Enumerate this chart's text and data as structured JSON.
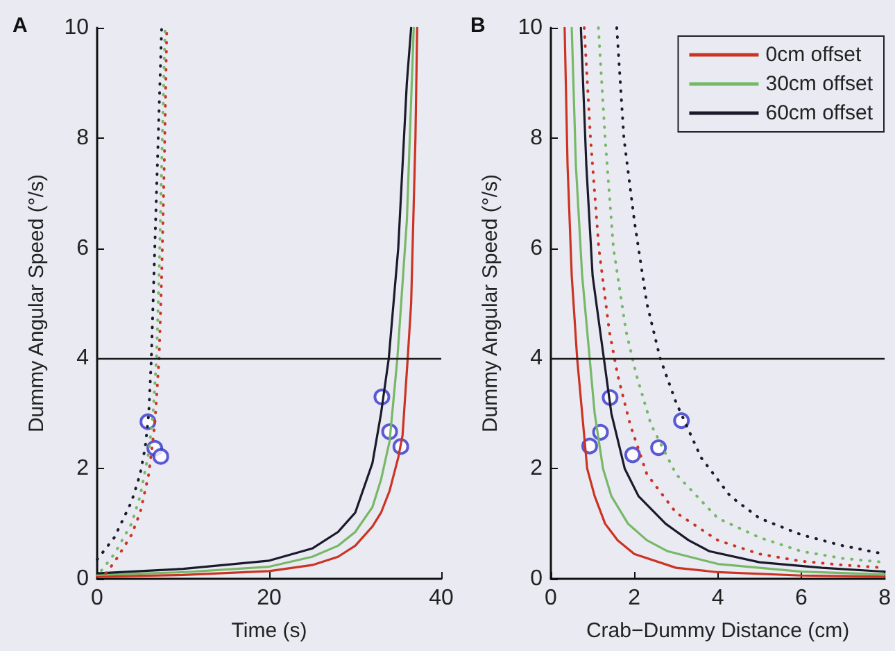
{
  "chart_data": [
    {
      "type": "line",
      "title": "A",
      "xlabel": "Time (s)",
      "ylabel": "Dummy Angular Speed (°/s)",
      "xlim": [
        0,
        40
      ],
      "ylim": [
        0,
        10
      ],
      "xticks": [
        0,
        20,
        40
      ],
      "yticks": [
        0,
        2,
        4,
        6,
        8,
        10
      ],
      "grid": false,
      "legend": false,
      "ref_lines": [
        {
          "axis": "y",
          "value": 4,
          "color": "#1a1a1a"
        }
      ],
      "series": [
        {
          "type": "line",
          "color": "#cc3322",
          "line_style": "solid",
          "x": [
            0,
            10,
            20,
            25,
            28,
            30,
            32,
            33,
            34,
            35,
            35.5,
            36.1,
            36.5,
            37,
            37.2
          ],
          "values": [
            0.04,
            0.07,
            0.14,
            0.25,
            0.4,
            0.6,
            0.95,
            1.2,
            1.6,
            2.2,
            2.6,
            4,
            5,
            8,
            10
          ]
        },
        {
          "type": "line",
          "color": "#77b866",
          "line_style": "solid",
          "x": [
            0,
            10,
            20,
            25,
            28,
            30,
            32,
            33,
            34,
            34.9,
            36,
            36.8
          ],
          "values": [
            0.07,
            0.12,
            0.22,
            0.4,
            0.6,
            0.85,
            1.3,
            1.8,
            2.5,
            4,
            6.5,
            10
          ]
        },
        {
          "type": "line",
          "color": "#1a1a2a",
          "line_style": "solid",
          "x": [
            0,
            10,
            20,
            25,
            28,
            30,
            32,
            33,
            33.9,
            35,
            36,
            36.5
          ],
          "values": [
            0.1,
            0.18,
            0.33,
            0.55,
            0.85,
            1.2,
            2.1,
            3,
            4,
            6,
            9,
            10
          ]
        },
        {
          "type": "line",
          "color": "#cc3322",
          "line_style": "dotted",
          "x": [
            1,
            2,
            4,
            5,
            6,
            6.7,
            7.2,
            7.5,
            7.8,
            8.1
          ],
          "values": [
            0.1,
            0.3,
            0.8,
            1.2,
            1.9,
            2.8,
            4,
            5.5,
            7.5,
            10
          ]
        },
        {
          "type": "line",
          "color": "#77b866",
          "line_style": "dotted",
          "x": [
            0.5,
            2,
            4,
            5,
            6,
            6.5,
            6.9,
            7.2,
            7.5,
            7.9
          ],
          "values": [
            0.15,
            0.45,
            1,
            1.5,
            2.3,
            3,
            4,
            5.5,
            7.5,
            10
          ]
        },
        {
          "type": "line",
          "color": "#1a1a2a",
          "line_style": "dotted",
          "x": [
            0,
            2,
            4,
            5,
            5.6,
            6,
            6.3,
            6.6,
            7,
            7.5
          ],
          "values": [
            0.35,
            0.75,
            1.4,
            1.9,
            2.4,
            3,
            4,
            5.5,
            7.5,
            10
          ]
        },
        {
          "type": "scatter",
          "color": "#3333cc",
          "marker": "circle",
          "x": [
            5.9,
            6.7,
            7.4,
            33.1,
            34,
            35.3
          ],
          "values": [
            2.85,
            2.37,
            2.22,
            3.3,
            2.67,
            2.4
          ]
        }
      ]
    },
    {
      "type": "line",
      "title": "B",
      "xlabel": "Crab−Dummy Distance (cm)",
      "ylabel": "Dummy Angular Speed (°/s)",
      "xlim": [
        0,
        8
      ],
      "ylim": [
        0,
        10
      ],
      "xticks": [
        0,
        2,
        4,
        6,
        8
      ],
      "yticks": [
        0,
        2,
        4,
        6,
        8,
        10
      ],
      "grid": false,
      "legend": "top right",
      "ref_lines": [
        {
          "axis": "y",
          "value": 4,
          "color": "#1a1a1a"
        }
      ],
      "series": [
        {
          "name": "0cm offset",
          "type": "line",
          "color": "#cc3322",
          "line_style": "solid",
          "x": [
            0.33,
            0.4,
            0.5,
            0.63,
            0.75,
            0.87,
            1.05,
            1.3,
            1.6,
            2,
            3,
            4,
            6,
            8
          ],
          "values": [
            10,
            7.5,
            5.5,
            4,
            3,
            2,
            1.5,
            1,
            0.7,
            0.45,
            0.2,
            0.12,
            0.06,
            0.04
          ]
        },
        {
          "name": "30cm offset",
          "type": "line",
          "color": "#77b866",
          "line_style": "solid",
          "x": [
            0.5,
            0.6,
            0.75,
            0.93,
            1.05,
            1.25,
            1.45,
            1.85,
            2.3,
            2.8,
            4,
            6,
            8
          ],
          "values": [
            10,
            7.5,
            5.5,
            4,
            3,
            2,
            1.5,
            1,
            0.7,
            0.5,
            0.27,
            0.13,
            0.08
          ]
        },
        {
          "name": "60cm offset",
          "type": "line",
          "color": "#1a1a2a",
          "line_style": "solid",
          "x": [
            0.72,
            0.85,
            1,
            1.27,
            1.45,
            1.77,
            2.1,
            2.75,
            3.3,
            3.8,
            5,
            6.5,
            8
          ],
          "values": [
            10,
            7.5,
            5.5,
            4,
            3,
            2,
            1.5,
            1,
            0.7,
            0.5,
            0.3,
            0.2,
            0.13
          ]
        },
        {
          "type": "line",
          "color": "#cc3322",
          "line_style": "dotted",
          "x": [
            0.8,
            0.95,
            1.15,
            1.4,
            1.6,
            1.9,
            2.3,
            3,
            4,
            5,
            6,
            7,
            8
          ],
          "values": [
            10,
            8,
            6,
            4.5,
            3.7,
            2.8,
            1.9,
            1.2,
            0.7,
            0.45,
            0.32,
            0.25,
            0.2
          ]
        },
        {
          "type": "line",
          "color": "#77b866",
          "line_style": "dotted",
          "x": [
            1.14,
            1.3,
            1.5,
            1.8,
            2.05,
            2.4,
            3,
            4,
            5,
            6,
            7,
            8
          ],
          "values": [
            10,
            8,
            6,
            4.5,
            3.7,
            2.8,
            1.9,
            1.1,
            0.75,
            0.5,
            0.37,
            0.3
          ]
        },
        {
          "type": "line",
          "color": "#1a1a2a",
          "line_style": "dotted",
          "x": [
            1.58,
            1.75,
            2,
            2.3,
            2.62,
            3,
            3.6,
            4.3,
            5,
            6,
            7,
            8
          ],
          "values": [
            10,
            8,
            6.5,
            5,
            4,
            3.2,
            2.2,
            1.5,
            1.1,
            0.8,
            0.6,
            0.45
          ]
        },
        {
          "type": "scatter",
          "color": "#3333cc",
          "marker": "circle",
          "x": [
            0.93,
            1.19,
            1.42,
            1.96,
            2.58,
            3.13
          ],
          "values": [
            2.41,
            2.66,
            3.29,
            2.25,
            2.38,
            2.87
          ]
        }
      ]
    }
  ]
}
